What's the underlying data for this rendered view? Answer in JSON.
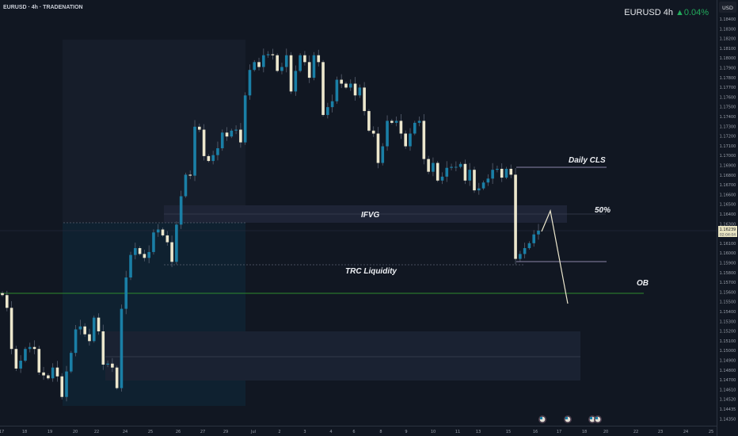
{
  "header": {
    "symbol_line": "EURUSD · 4h · TRADENATION",
    "ticker": "EURUSD 4h",
    "change": "▲0.04%",
    "change_color": "#22ab5c"
  },
  "price_axis": {
    "currency": "USD",
    "current_price": "1.16239",
    "countdown": "02:04:04"
  },
  "annotations": {
    "daily_cls": "Daily CLS",
    "fifty": "50%",
    "ifvg": "IFVG",
    "trc_liquidity": "TRC Liquidity",
    "ob": "OB"
  },
  "colors": {
    "up": "#1a7fa6",
    "down": "#ece7cd",
    "ob_line": "#2e8b2e",
    "background": "#111722"
  },
  "icons": [
    "economic-event-icon",
    "economic-event-icon",
    "economic-event-icon",
    "economic-event-icon"
  ],
  "chart_data": {
    "type": "candlestick",
    "title": "EURUSD · 4h · TRADENATION",
    "ylabel": "USD",
    "ylim": [
      1.1435,
      1.184
    ],
    "grid": false,
    "y_ticks": [
      "1.18400",
      "1.18300",
      "1.18200",
      "1.18100",
      "1.18000",
      "1.17900",
      "1.17800",
      "1.17700",
      "1.17600",
      "1.17500",
      "1.17400",
      "1.17300",
      "1.17200",
      "1.17100",
      "1.17000",
      "1.16900",
      "1.16800",
      "1.16700",
      "1.16600",
      "1.16500",
      "1.16400",
      "1.16300",
      "1.16200",
      "1.16100",
      "1.16000",
      "1.15900",
      "1.15800",
      "1.15700",
      "1.15600",
      "1.15500",
      "1.15400",
      "1.15300",
      "1.15200",
      "1.15100",
      "1.15000",
      "1.14900",
      "1.14800",
      "1.14700",
      "1.14610",
      "1.14520",
      "1.14435",
      "1.14350"
    ],
    "x_ticks": [
      "17",
      "18",
      "19",
      "20",
      "22",
      "24",
      "25",
      "26",
      "27",
      "29",
      "Jul",
      "2",
      "3",
      "4",
      "6",
      "8",
      "9",
      "10",
      "11",
      "13",
      "15",
      "16",
      "17",
      "18",
      "20",
      "22",
      "23",
      "24",
      "25"
    ],
    "first_open": 1.156,
    "close": [
      1.1558,
      1.1545,
      1.1503,
      1.1483,
      1.1491,
      1.1503,
      1.1505,
      1.1503,
      1.1479,
      1.1476,
      1.1473,
      1.1484,
      1.1475,
      1.1454,
      1.148,
      1.1499,
      1.1523,
      1.1526,
      1.1518,
      1.1511,
      1.1535,
      1.1521,
      1.1487,
      1.1488,
      1.1484,
      1.1463,
      1.1544,
      1.1576,
      1.1599,
      1.1606,
      1.16,
      1.1596,
      1.1602,
      1.1622,
      1.1625,
      1.1619,
      1.1612,
      1.1592,
      1.163,
      1.1659,
      1.1681,
      1.168,
      1.173,
      1.1727,
      1.17,
      1.1695,
      1.1701,
      1.1708,
      1.1724,
      1.172,
      1.1726,
      1.1727,
      1.1714,
      1.1762,
      1.1788,
      1.1796,
      1.1791,
      1.1803,
      1.1804,
      1.1803,
      1.1787,
      1.1791,
      1.1803,
      1.1766,
      1.1787,
      1.1803,
      1.1796,
      1.178,
      1.1803,
      1.1796,
      1.1742,
      1.175,
      1.1756,
      1.1778,
      1.1774,
      1.177,
      1.1774,
      1.1762,
      1.177,
      1.1746,
      1.1726,
      1.1723,
      1.1693,
      1.171,
      1.1736,
      1.1734,
      1.1736,
      1.1723,
      1.171,
      1.1723,
      1.1734,
      1.1736,
      1.1697,
      1.1684,
      1.1693,
      1.1675,
      1.1679,
      1.1688,
      1.1689,
      1.1689,
      1.1692,
      1.1675,
      1.1686,
      1.1665,
      1.1667,
      1.1673,
      1.1677,
      1.1686,
      1.1687,
      1.1678,
      1.1687,
      1.1681,
      1.1595,
      1.16,
      1.1606,
      1.1611,
      1.162,
      1.16239
    ]
  }
}
